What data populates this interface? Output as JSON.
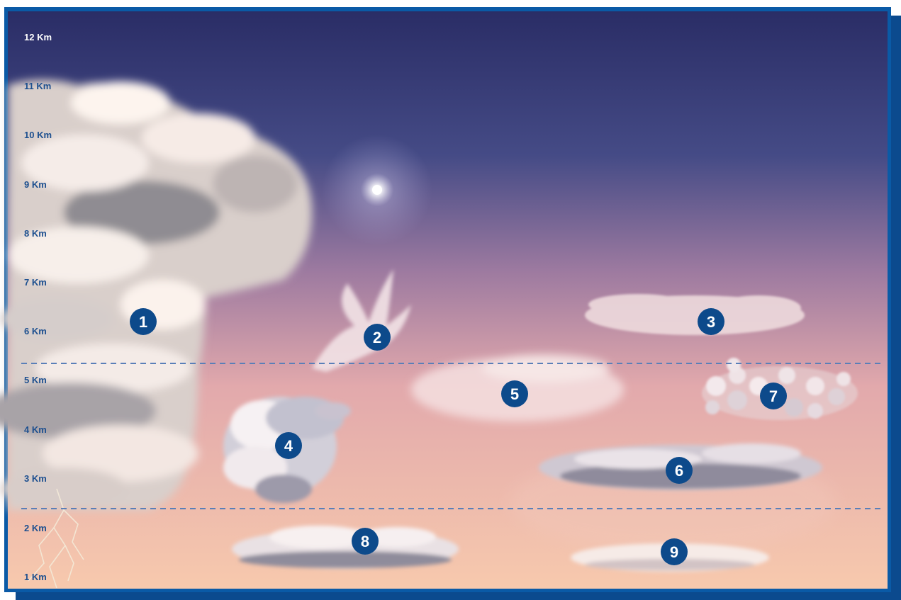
{
  "altitude_labels": [
    "12 Km",
    "11 Km",
    "10 Km",
    "9 Km",
    "8 Km",
    "7 Km",
    "6 Km",
    "5 Km",
    "4 Km",
    "3 Km",
    "2 Km",
    "1 Km"
  ],
  "markers": [
    {
      "number": "1",
      "icon": "cumulonimbus-cloud"
    },
    {
      "number": "2",
      "icon": "cirrus-cloud"
    },
    {
      "number": "3",
      "icon": "cirrocumulus-cloud"
    },
    {
      "number": "4",
      "icon": "cumulus-cloud"
    },
    {
      "number": "5",
      "icon": "altostratus-cloud"
    },
    {
      "number": "6",
      "icon": "nimbostratus-cloud"
    },
    {
      "number": "7",
      "icon": "altocumulus-cloud"
    },
    {
      "number": "8",
      "icon": "stratocumulus-cloud"
    },
    {
      "number": "9",
      "icon": "stratus-cloud"
    }
  ],
  "colors": {
    "frame": "#0a4f97",
    "sky_top": "#2a2d66",
    "sky_mid": "#9d7aa0",
    "sky_bottom": "#f7c9ad",
    "marker": "#0d4a8b",
    "divider": "#5a7fb8"
  }
}
